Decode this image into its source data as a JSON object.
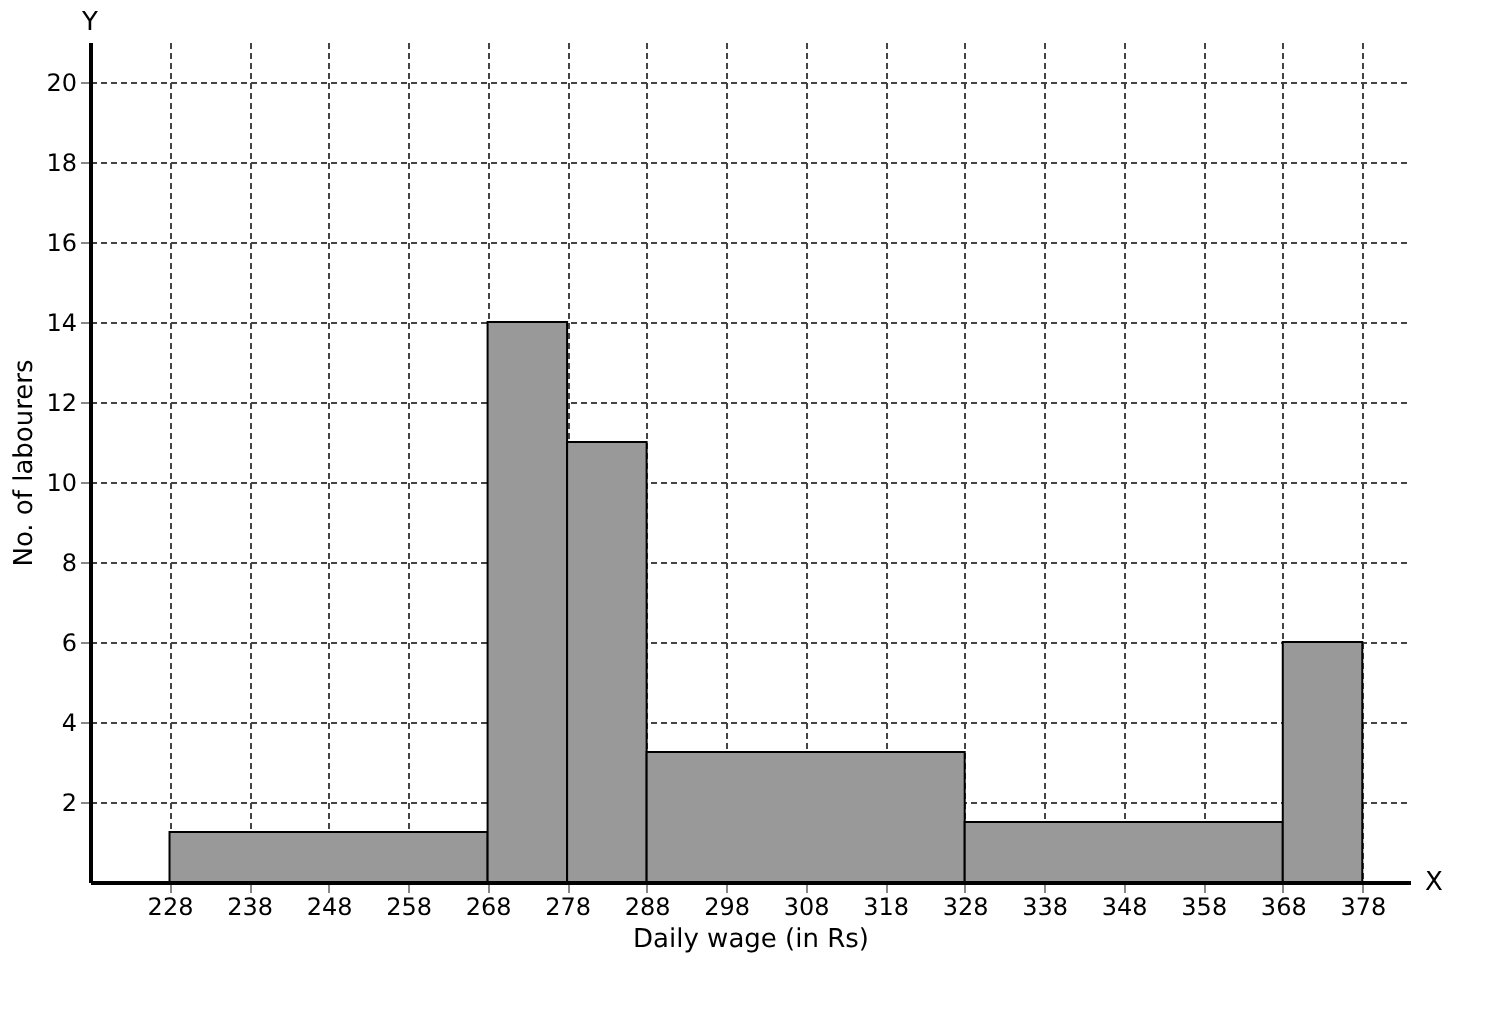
{
  "chart_data": {
    "type": "histogram",
    "xlabel": "Daily wage (in Rs)",
    "ylabel": "No. of labourers",
    "bins": [
      228,
      268,
      278,
      288,
      328,
      368,
      378
    ],
    "values": [
      1.25,
      14,
      11,
      3.25,
      1.5,
      6
    ],
    "color": "#999999",
    "xlim": [
      218,
      384
    ],
    "ylim": [
      0,
      21
    ],
    "xticks": [
      228,
      238,
      248,
      258,
      268,
      278,
      288,
      298,
      308,
      318,
      328,
      338,
      348,
      358,
      368,
      378
    ],
    "yticks": [
      2,
      4,
      6,
      8,
      10,
      12,
      14,
      16,
      18,
      20
    ],
    "grid": true,
    "annotations": [
      "X",
      "Y"
    ]
  }
}
